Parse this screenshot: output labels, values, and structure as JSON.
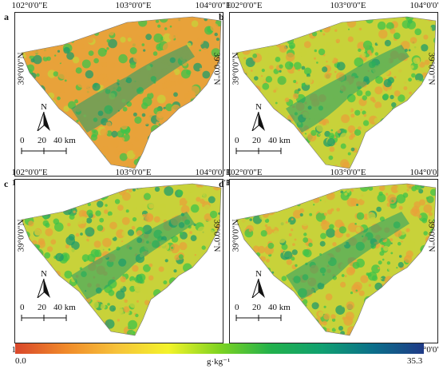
{
  "panels": [
    {
      "label": "a",
      "lon_ticks": [
        "102°0'0\"E",
        "103°0'0\"E",
        "104°0'0\"E"
      ],
      "lat_tick": "39°0'0\"N",
      "north": "N",
      "scale_labels": [
        "0",
        "20",
        "40 km"
      ]
    },
    {
      "label": "b",
      "lon_ticks": [
        "102°0'0\"E",
        "103°0'0\"E",
        "104°0'0\"E"
      ],
      "lat_tick": "39°0'0\"N",
      "north": "N",
      "scale_labels": [
        "0",
        "20",
        "40 km"
      ]
    },
    {
      "label": "c",
      "lon_ticks": [
        "102°0'0\"E",
        "103°0'0\"E",
        "104°0'0\"E"
      ],
      "lat_tick": "39°0'0\"N",
      "north": "N",
      "scale_labels": [
        "0",
        "20",
        "40 km"
      ]
    },
    {
      "label": "d",
      "lon_ticks": [
        "102°0'0\"E",
        "103°0'0\"E",
        "104°0'0\"E"
      ],
      "lat_tick": "39°0'0\"N",
      "north": "N",
      "scale_labels": [
        "0",
        "20",
        "40 km"
      ]
    }
  ],
  "legend": {
    "min": "0.0",
    "max": "35.3",
    "unit": "g·kg⁻¹",
    "colors": [
      "#d9472b",
      "#f08a2a",
      "#f6c33a",
      "#f3f32a",
      "#7ed321",
      "#22b14c",
      "#10a070",
      "#0b6f8a",
      "#1f3a87"
    ]
  },
  "colors": {
    "map_tints": [
      "#e8a23a",
      "#c8d23a",
      "#3fc34a",
      "#1f9c6a"
    ]
  }
}
